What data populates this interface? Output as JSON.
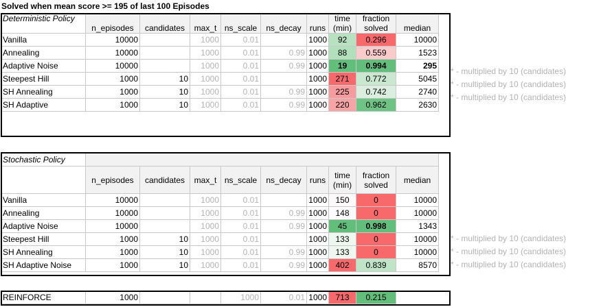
{
  "title": "Solved when mean score >= 195 of last 100 Episodes",
  "headers": {
    "n_episodes": "n_episodes",
    "candidates": "candidates",
    "max_t": "max_t",
    "ns_scale": "ns_scale",
    "ns_decay": "ns_decay",
    "runs": "runs",
    "time_1": "time",
    "time_2": "(min)",
    "fraction_1": "fraction",
    "fraction_2": "solved",
    "median": "median"
  },
  "note": "* - multiplied by 10 (candidates)",
  "colors": {
    "green_strong": "#63be7b",
    "green_light": "#a9dbb2",
    "red_strong": "#f8696b",
    "red_light": "#fbc3c4",
    "grey_text": "#b4b4b4"
  },
  "deterministic": {
    "label": "Deterministic Policy",
    "rows": [
      {
        "name": "Vanilla",
        "n_episodes": "10000",
        "candidates": "",
        "max_t": "1000",
        "ns_scale": "0.01",
        "ns_decay": "",
        "runs": "1000",
        "time": "92",
        "fraction": "0.296",
        "median": "10000",
        "time_bg": "#b7e1c1",
        "frac_bg": "#f8696b",
        "note": false,
        "bold_time": false,
        "bold_frac": false,
        "bold_median": false
      },
      {
        "name": "Annealing",
        "n_episodes": "10000",
        "candidates": "",
        "max_t": "1000",
        "ns_scale": "0.01",
        "ns_decay": "0.99",
        "runs": "1000",
        "time": "88",
        "fraction": "0.559",
        "median": "1523",
        "time_bg": "#b2dfbc",
        "frac_bg": "#fbcacb",
        "note": false,
        "bold_time": false,
        "bold_frac": false,
        "bold_median": false
      },
      {
        "name": "Adaptive Noise",
        "n_episodes": "10000",
        "candidates": "",
        "max_t": "1000",
        "ns_scale": "0.01",
        "ns_decay": "0.99",
        "runs": "1000",
        "time": "19",
        "fraction": "0.994",
        "median": "295",
        "time_bg": "#63be7b",
        "frac_bg": "#63be7b",
        "note": false,
        "bold_time": true,
        "bold_frac": true,
        "bold_median": true
      },
      {
        "name": "Steepest Hill",
        "n_episodes": "1000",
        "candidates": "10",
        "max_t": "1000",
        "ns_scale": "0.01",
        "ns_decay": "",
        "runs": "1000",
        "time": "271",
        "fraction": "0.772",
        "median": "5045",
        "time_bg": "#f8696b",
        "frac_bg": "#c9e8cf",
        "note": true,
        "bold_time": false,
        "bold_frac": false,
        "bold_median": false
      },
      {
        "name": "SH Annealing",
        "n_episodes": "1000",
        "candidates": "10",
        "max_t": "1000",
        "ns_scale": "0.01",
        "ns_decay": "0.99",
        "runs": "1000",
        "time": "225",
        "fraction": "0.742",
        "median": "2740",
        "time_bg": "#f79c9e",
        "frac_bg": "#dbeee0",
        "note": true,
        "bold_time": false,
        "bold_frac": false,
        "bold_median": false
      },
      {
        "name": "SH Adaptive",
        "n_episodes": "1000",
        "candidates": "10",
        "max_t": "1000",
        "ns_scale": "0.01",
        "ns_decay": "0.99",
        "runs": "1000",
        "time": "220",
        "fraction": "0.962",
        "median": "2630",
        "time_bg": "#f8a3a5",
        "frac_bg": "#6fc385",
        "note": true,
        "bold_time": false,
        "bold_frac": false,
        "bold_median": false
      }
    ]
  },
  "stochastic": {
    "label": "Stochastic Policy",
    "rows": [
      {
        "name": "Vanilla",
        "n_episodes": "10000",
        "candidates": "",
        "max_t": "1000",
        "ns_scale": "0.01",
        "ns_decay": "",
        "runs": "1000",
        "time": "150",
        "fraction": "0",
        "median": "10000",
        "time_bg": "#fbf9fa",
        "frac_bg": "#f8696b",
        "note": false,
        "bold_time": false,
        "bold_frac": false,
        "bold_median": false
      },
      {
        "name": "Annealing",
        "n_episodes": "10000",
        "candidates": "",
        "max_t": "1000",
        "ns_scale": "0.01",
        "ns_decay": "0.99",
        "runs": "1000",
        "time": "148",
        "fraction": "0",
        "median": "10000",
        "time_bg": "#fcfcff",
        "frac_bg": "#f8696b",
        "note": false,
        "bold_time": false,
        "bold_frac": false,
        "bold_median": false
      },
      {
        "name": "Adaptive Noise",
        "n_episodes": "10000",
        "candidates": "",
        "max_t": "1000",
        "ns_scale": "0.01",
        "ns_decay": "0.99",
        "runs": "1000",
        "time": "45",
        "fraction": "0.998",
        "median": "1343",
        "time_bg": "#63be7b",
        "frac_bg": "#63be7b",
        "note": false,
        "bold_time": false,
        "bold_frac": true,
        "bold_median": false
      },
      {
        "name": "Steepest Hill",
        "n_episodes": "1000",
        "candidates": "10",
        "max_t": "1000",
        "ns_scale": "0.01",
        "ns_decay": "",
        "runs": "1000",
        "time": "133",
        "fraction": "0",
        "median": "10000",
        "time_bg": "#eef7f0",
        "frac_bg": "#f8696b",
        "note": true,
        "bold_time": false,
        "bold_frac": false,
        "bold_median": false
      },
      {
        "name": "SH Annealing",
        "n_episodes": "1000",
        "candidates": "10",
        "max_t": "1000",
        "ns_scale": "0.01",
        "ns_decay": "0.99",
        "runs": "1000",
        "time": "133",
        "fraction": "0",
        "median": "10000",
        "time_bg": "#eef7f0",
        "frac_bg": "#f8696b",
        "note": true,
        "bold_time": false,
        "bold_frac": false,
        "bold_median": false
      },
      {
        "name": "SH Adaptive Noise",
        "n_episodes": "1000",
        "candidates": "10",
        "max_t": "1000",
        "ns_scale": "0.01",
        "ns_decay": "0.99",
        "runs": "1000",
        "time": "402",
        "fraction": "0.839",
        "median": "8570",
        "time_bg": "#f8696b",
        "frac_bg": "#bfe4c7",
        "note": true,
        "bold_time": false,
        "bold_frac": false,
        "bold_median": false
      }
    ]
  },
  "reinforce": {
    "name": "REINFORCE",
    "n_episodes": "1000",
    "max_t": "1000",
    "ns_scale": "0.01",
    "runs": "1000",
    "time": "713",
    "fraction": "0.215",
    "time_bg": "#f8696b",
    "frac_bg": "#63be7b"
  }
}
